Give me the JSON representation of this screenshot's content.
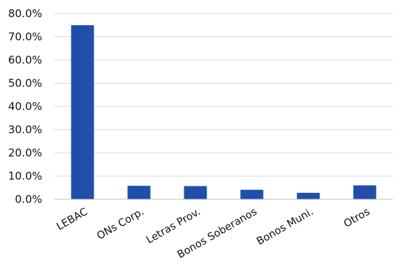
{
  "chart_data": {
    "type": "bar",
    "categories": [
      "LEBAC",
      "ONs Corp.",
      "Letras Prov.",
      "Bonos Soberanos",
      "Bonos Muni.",
      "Otros"
    ],
    "values": [
      75.0,
      5.8,
      5.7,
      4.1,
      2.8,
      6.0
    ],
    "title": "",
    "xlabel": "",
    "ylabel": "",
    "ylim": [
      0,
      80
    ],
    "yticks": [
      "0.0%",
      "10.0%",
      "20.0%",
      "30.0%",
      "40.0%",
      "50.0%",
      "60.0%",
      "70.0%",
      "80.0%"
    ],
    "grid": true,
    "bar_color": "#1f4faa"
  }
}
